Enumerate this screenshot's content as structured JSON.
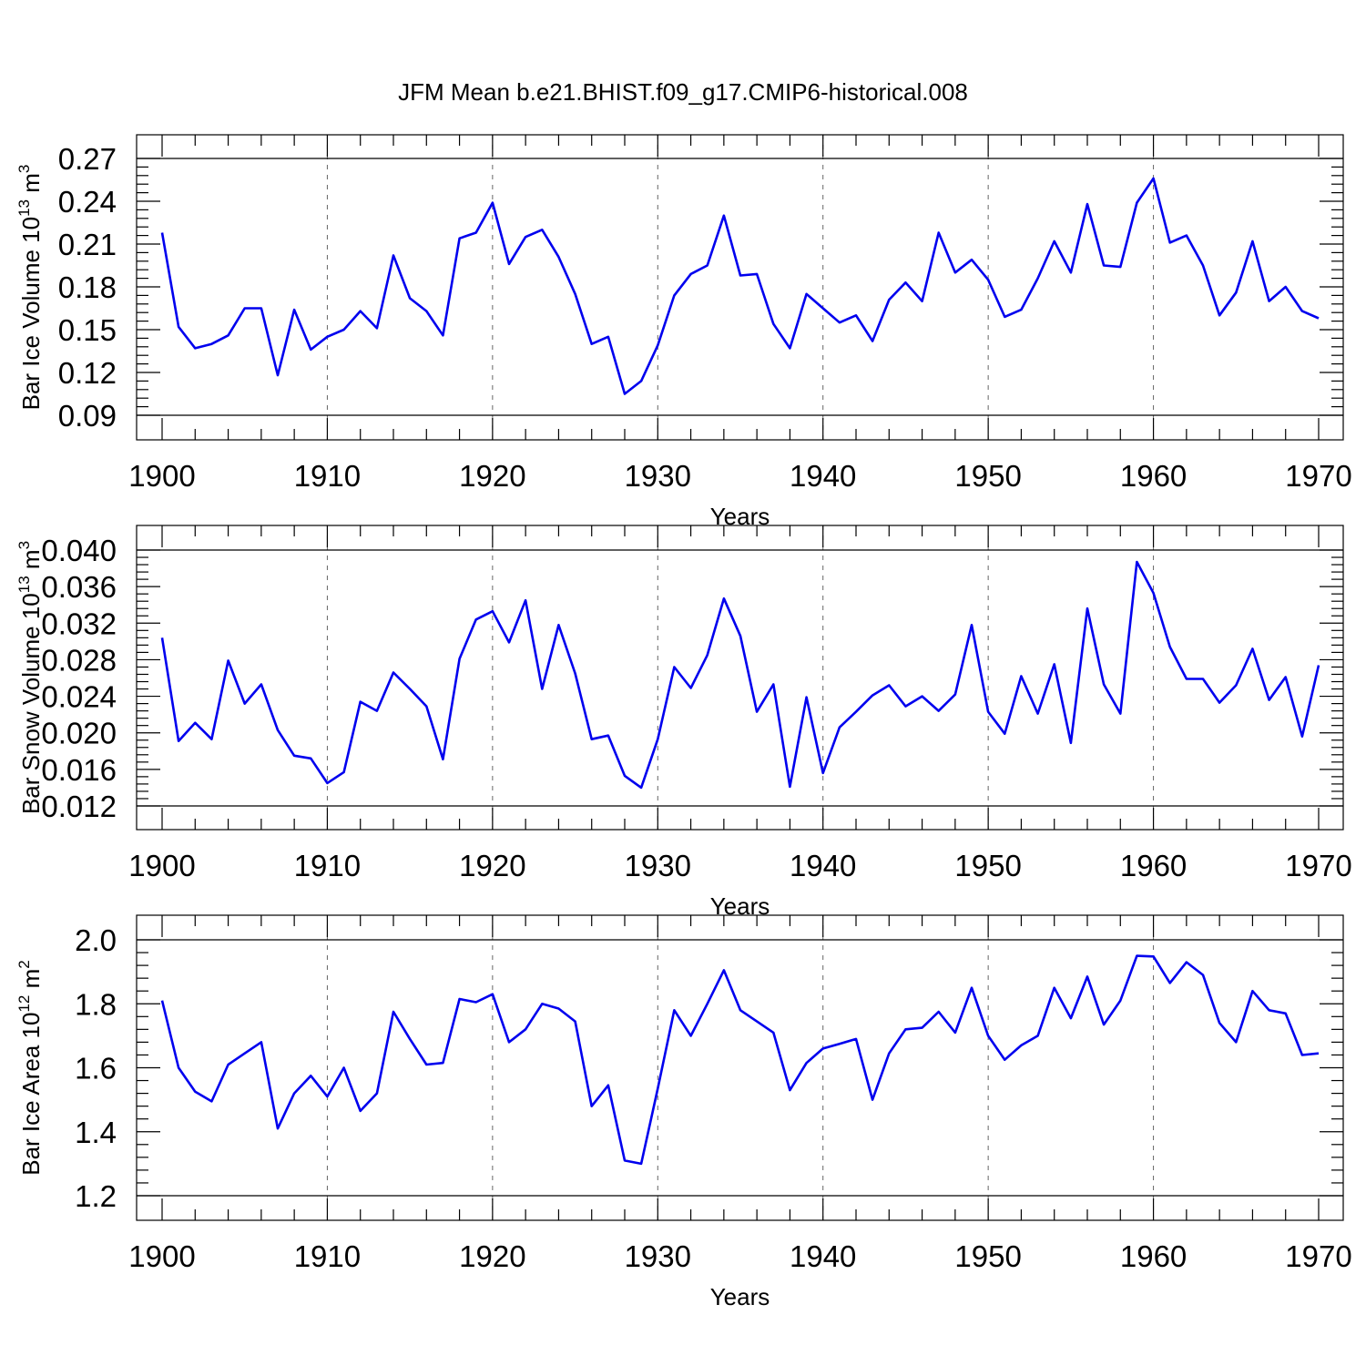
{
  "title": "JFM Mean b.e21.BHIST.f09_g17.CMIP6-historical.008",
  "chart_data": [
    {
      "type": "line",
      "name": "ice-volume",
      "ylabel_main": "Bar Ice Volume 10",
      "ylabel_exp": "13",
      "ylabel_unit": "m",
      "ylabel_unit_exp": "3",
      "xlabel": "Years",
      "xlim": [
        1900,
        1970
      ],
      "ylim": [
        0.09,
        0.27
      ],
      "yticks": [
        0.09,
        0.12,
        0.15,
        0.18,
        0.21,
        0.24,
        0.27
      ],
      "ytick_labels": [
        "0.09",
        "0.12",
        "0.15",
        "0.18",
        "0.21",
        "0.24",
        "0.27"
      ],
      "xticks": [
        1900,
        1910,
        1920,
        1930,
        1940,
        1950,
        1960,
        1970
      ],
      "xtick_labels": [
        "1900",
        "1910",
        "1920",
        "1930",
        "1940",
        "1950",
        "1960",
        "1970"
      ],
      "grid": "dashed vertical at decades",
      "x_start": 1900,
      "values": [
        0.218,
        0.152,
        0.137,
        0.14,
        0.146,
        0.165,
        0.165,
        0.118,
        0.164,
        0.136,
        0.145,
        0.15,
        0.163,
        0.151,
        0.202,
        0.172,
        0.163,
        0.146,
        0.214,
        0.218,
        0.239,
        0.196,
        0.215,
        0.22,
        0.201,
        0.175,
        0.14,
        0.145,
        0.105,
        0.114,
        0.139,
        0.174,
        0.189,
        0.195,
        0.23,
        0.188,
        0.189,
        0.154,
        0.137,
        0.175,
        0.165,
        0.155,
        0.16,
        0.142,
        0.171,
        0.183,
        0.17,
        0.218,
        0.19,
        0.199,
        0.185,
        0.159,
        0.164,
        0.186,
        0.212,
        0.19,
        0.238,
        0.195,
        0.194,
        0.239,
        0.256,
        0.211,
        0.216,
        0.195,
        0.16,
        0.176,
        0.212,
        0.17,
        0.18,
        0.163,
        0.158
      ]
    },
    {
      "type": "line",
      "name": "snow-volume",
      "ylabel_main": "Bar Snow Volume 10",
      "ylabel_exp": "13",
      "ylabel_unit": "m",
      "ylabel_unit_exp": "3",
      "xlabel": "Years",
      "xlim": [
        1900,
        1970
      ],
      "ylim": [
        0.012,
        0.04
      ],
      "yticks": [
        0.012,
        0.016,
        0.02,
        0.024,
        0.028,
        0.032,
        0.036,
        0.04
      ],
      "ytick_labels": [
        "0.012",
        "0.016",
        "0.020",
        "0.024",
        "0.028",
        "0.032",
        "0.036",
        "0.040"
      ],
      "xticks": [
        1900,
        1910,
        1920,
        1930,
        1940,
        1950,
        1960,
        1970
      ],
      "xtick_labels": [
        "1900",
        "1910",
        "1920",
        "1930",
        "1940",
        "1950",
        "1960",
        "1970"
      ],
      "grid": "dashed vertical at decades",
      "x_start": 1900,
      "values": [
        0.0304,
        0.0191,
        0.0211,
        0.0193,
        0.0279,
        0.0232,
        0.0253,
        0.0203,
        0.0175,
        0.0172,
        0.0145,
        0.0157,
        0.0234,
        0.0224,
        0.0266,
        0.0248,
        0.0229,
        0.0171,
        0.0281,
        0.0324,
        0.0333,
        0.0299,
        0.0345,
        0.0248,
        0.0318,
        0.0265,
        0.0193,
        0.0197,
        0.0153,
        0.014,
        0.0193,
        0.0272,
        0.0249,
        0.0285,
        0.0347,
        0.0306,
        0.0223,
        0.0253,
        0.0141,
        0.0239,
        0.0156,
        0.0206,
        0.0223,
        0.0241,
        0.0252,
        0.0229,
        0.024,
        0.0224,
        0.0242,
        0.0318,
        0.0223,
        0.0199,
        0.0262,
        0.0221,
        0.0275,
        0.0189,
        0.0336,
        0.0253,
        0.0221,
        0.0387,
        0.0353,
        0.0294,
        0.0259,
        0.0259,
        0.0233,
        0.0252,
        0.0292,
        0.0236,
        0.0261,
        0.0196,
        0.0274
      ]
    },
    {
      "type": "line",
      "name": "ice-area",
      "ylabel_main": "Bar Ice Area 10",
      "ylabel_exp": "12",
      "ylabel_unit": "m",
      "ylabel_unit_exp": "2",
      "xlabel": "Years",
      "xlim": [
        1900,
        1970
      ],
      "ylim": [
        1.2,
        2.0
      ],
      "yticks": [
        1.2,
        1.4,
        1.6,
        1.8,
        2.0
      ],
      "ytick_labels": [
        "1.2",
        "1.4",
        "1.6",
        "1.8",
        "2.0"
      ],
      "xticks": [
        1900,
        1910,
        1920,
        1930,
        1940,
        1950,
        1960,
        1970
      ],
      "xtick_labels": [
        "1900",
        "1910",
        "1920",
        "1930",
        "1940",
        "1950",
        "1960",
        "1970"
      ],
      "grid": "dashed vertical at decades",
      "x_start": 1900,
      "values": [
        1.81,
        1.6,
        1.525,
        1.495,
        1.61,
        1.645,
        1.68,
        1.41,
        1.52,
        1.575,
        1.51,
        1.6,
        1.465,
        1.52,
        1.775,
        1.69,
        1.61,
        1.615,
        1.815,
        1.805,
        1.83,
        1.68,
        1.72,
        1.8,
        1.785,
        1.745,
        1.48,
        1.545,
        1.31,
        1.3,
        1.535,
        1.78,
        1.7,
        1.8,
        1.905,
        1.78,
        1.745,
        1.71,
        1.53,
        1.615,
        1.66,
        1.675,
        1.69,
        1.5,
        1.645,
        1.72,
        1.725,
        1.775,
        1.71,
        1.85,
        1.7,
        1.625,
        1.67,
        1.7,
        1.85,
        1.755,
        1.885,
        1.735,
        1.81,
        1.95,
        1.948,
        1.865,
        1.93,
        1.89,
        1.74,
        1.68,
        1.84,
        1.78,
        1.77,
        1.64,
        1.645
      ]
    }
  ]
}
